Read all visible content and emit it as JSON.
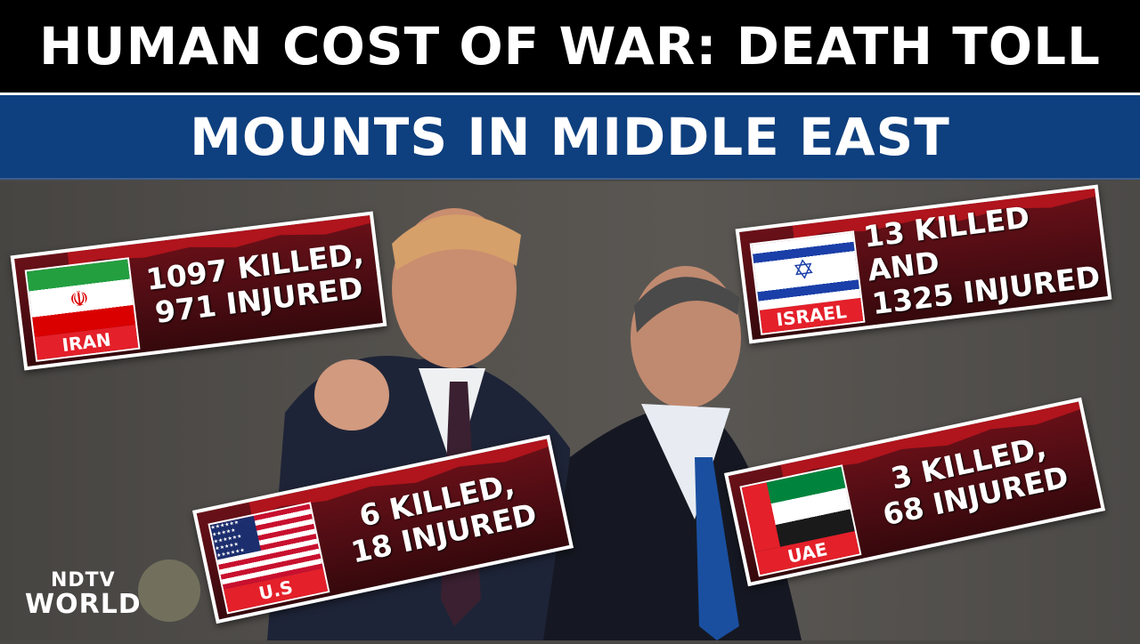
{
  "headline": {
    "line1": "HUMAN COST OF WAR: DEATH TOLL",
    "line2": "MOUNTS IN MIDDLE EAST"
  },
  "cards": [
    {
      "country": "IRAN",
      "line1": "1097 KILLED,",
      "line2": "971 INJURED"
    },
    {
      "country": "ISRAEL",
      "line1": "13 KILLED AND",
      "line2": "1325 INJURED"
    },
    {
      "country": "U.S",
      "line1": "6 KILLED,",
      "line2": "18 INJURED"
    },
    {
      "country": "UAE",
      "line1": "3 KILLED,",
      "line2": "68 INJURED"
    }
  ],
  "logo": {
    "top": "NDTV",
    "bottom": "WORLD"
  },
  "colors": {
    "header_top": "#000000",
    "header_bottom": "#0e3f7e",
    "card_bg": "#5a0e15",
    "label_red": "#e4202a"
  }
}
